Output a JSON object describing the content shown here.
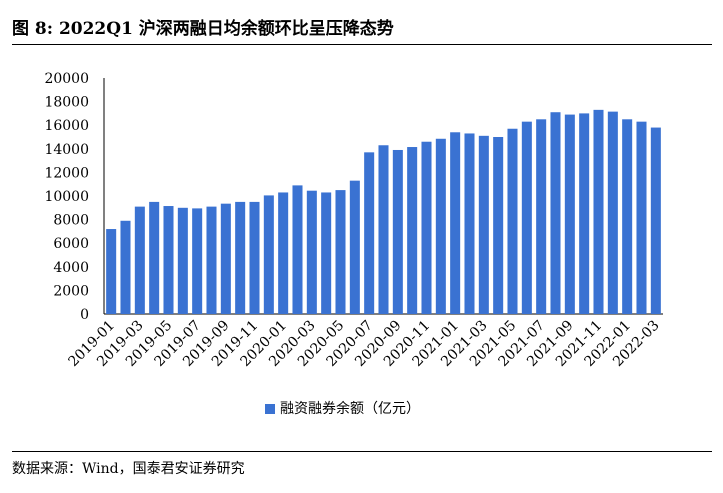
{
  "header": {
    "title": "图 8:  2022Q1 沪深两融日均余额环比呈压降态势"
  },
  "footer": {
    "source": "数据来源：Wind，国泰君安证券研究"
  },
  "colors": {
    "bar": "#3a72d2"
  },
  "chart_data": {
    "type": "bar",
    "title": "",
    "xlabel": "",
    "ylabel": "",
    "ylim": [
      0,
      20000
    ],
    "yticks": [
      0,
      2000,
      4000,
      6000,
      8000,
      10000,
      12000,
      14000,
      16000,
      18000,
      20000
    ],
    "grid": false,
    "legend_position": "bottom",
    "categories": [
      "2019-01",
      "2019-02",
      "2019-03",
      "2019-04",
      "2019-05",
      "2019-06",
      "2019-07",
      "2019-08",
      "2019-09",
      "2019-10",
      "2019-11",
      "2019-12",
      "2020-01",
      "2020-02",
      "2020-03",
      "2020-04",
      "2020-05",
      "2020-06",
      "2020-07",
      "2020-08",
      "2020-09",
      "2020-10",
      "2020-11",
      "2020-12",
      "2021-01",
      "2021-02",
      "2021-03",
      "2021-04",
      "2021-05",
      "2021-06",
      "2021-07",
      "2021-08",
      "2021-09",
      "2021-10",
      "2021-11",
      "2021-12",
      "2022-01",
      "2022-02",
      "2022-03"
    ],
    "xtick_labels": [
      "2019-01",
      "2019-03",
      "2019-05",
      "2019-07",
      "2019-09",
      "2019-11",
      "2020-01",
      "2020-03",
      "2020-05",
      "2020-07",
      "2020-09",
      "2020-11",
      "2021-01",
      "2021-03",
      "2021-05",
      "2021-07",
      "2021-09",
      "2021-11",
      "2022-01",
      "2022-03"
    ],
    "series": [
      {
        "name": "融资融券余额（亿元）",
        "values": [
          7200,
          7900,
          9100,
          9500,
          9150,
          9000,
          8950,
          9100,
          9350,
          9500,
          9500,
          10050,
          10300,
          10900,
          10450,
          10300,
          10500,
          11300,
          13700,
          14300,
          13900,
          14150,
          14600,
          14850,
          15400,
          15300,
          15100,
          15000,
          15700,
          16300,
          16500,
          17100,
          16900,
          17000,
          17300,
          17150,
          16500,
          16300,
          15800
        ]
      }
    ]
  }
}
